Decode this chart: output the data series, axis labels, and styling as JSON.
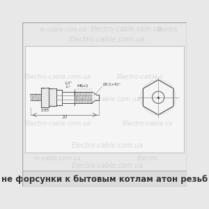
{
  "bg_color": "#e8e8e8",
  "drawing_bg": "#f0f0f0",
  "watermark_color": "#c0c0c0",
  "watermark_text": "Electro-cable.com.ua",
  "caption_text": "не форсунки к бытовым котлам атон резьб",
  "caption_color": "#333333",
  "caption_fontsize": 8.5,
  "line_color": "#555555"
}
